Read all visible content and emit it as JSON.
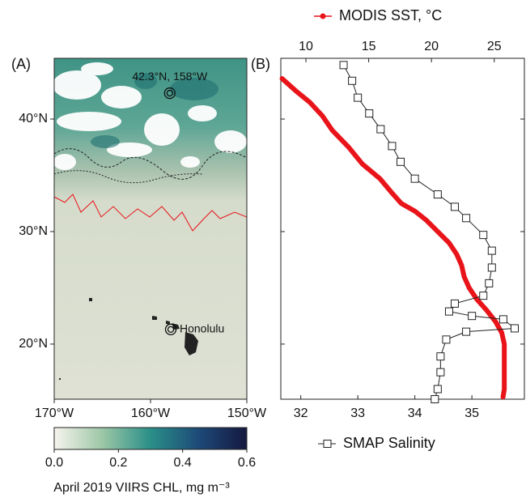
{
  "chart_data": [
    {
      "type": "map",
      "panel_label": "(A)",
      "xlim": [
        -170,
        -150
      ],
      "ylim": [
        15.1,
        45.4
      ],
      "xticks": [
        {
          "value": -170,
          "label": "170°W"
        },
        {
          "value": -160,
          "label": "160°W"
        },
        {
          "value": -150,
          "label": "150°W"
        }
      ],
      "yticks": [
        {
          "value": 40,
          "label": "40°N"
        },
        {
          "value": 30,
          "label": "30°N"
        },
        {
          "value": 20,
          "label": "20°N"
        }
      ],
      "points": [
        {
          "label": "42.3°N, 158°W",
          "lon": -158,
          "lat": 42.3
        },
        {
          "label": "Honolulu",
          "lon": -157.9,
          "lat": 21.3
        }
      ],
      "colorbar": {
        "label": "April 2019 VIIRS CHL, mg m⁻³",
        "lim": [
          0,
          0.6
        ],
        "ticks": [
          {
            "value": 0,
            "label": "0.0"
          },
          0.2,
          0.4,
          0.6
        ],
        "colors": [
          "#f7f4ee",
          "#9cc7a6",
          "#2a8f88",
          "#1d4a78",
          "#15183f"
        ]
      }
    },
    {
      "type": "line",
      "panel_label": "(B)",
      "xlim": [
        31.65,
        35.92
      ],
      "x2lim": [
        8,
        27.4
      ],
      "ylim": [
        15.1,
        45.4
      ],
      "xticks": [
        32,
        33,
        34,
        35
      ],
      "x2ticks": [
        10,
        15,
        20,
        25
      ],
      "series": [
        {
          "name": "MODIS SST, °C",
          "color": "#e8141a",
          "axis": "x2",
          "marker": "dot",
          "lat": [
            43.6,
            42.5,
            41.5,
            40.3,
            39,
            37.5,
            36,
            34.7,
            33.5,
            32.5,
            31.8,
            31,
            30,
            29,
            28,
            27,
            26,
            25,
            24,
            23,
            22,
            21,
            20,
            18,
            16,
            15.3
          ],
          "values": [
            8.1,
            9.2,
            10.3,
            11.3,
            12.1,
            13.4,
            14.5,
            15.9,
            16.8,
            17.6,
            18.7,
            19.6,
            20.5,
            21.4,
            22.0,
            22.4,
            22.6,
            23.0,
            23.6,
            24.4,
            25.1,
            25.6,
            25.8,
            25.8,
            25.8,
            25.7
          ]
        },
        {
          "name": "SMAP Salinity",
          "color": "#222222",
          "axis": "x",
          "marker": "square",
          "lat": [
            44.8,
            43.4,
            41.9,
            40.5,
            39.1,
            37.6,
            36.2,
            34.7,
            33.3,
            32.2,
            31.2,
            29.7,
            28.3,
            26.8,
            25.4,
            24.3,
            23.6,
            22.9,
            22.5,
            22.2,
            21.4,
            21.1,
            20.4,
            18.9,
            17.5,
            16.0,
            15.1
          ],
          "values": [
            32.75,
            32.9,
            33.0,
            33.2,
            33.4,
            33.6,
            33.75,
            34.0,
            34.4,
            34.7,
            34.9,
            35.2,
            35.35,
            35.35,
            35.3,
            35.2,
            34.7,
            34.6,
            35.0,
            35.55,
            35.75,
            34.9,
            34.55,
            34.45,
            34.45,
            34.4,
            34.35
          ]
        }
      ]
    }
  ]
}
